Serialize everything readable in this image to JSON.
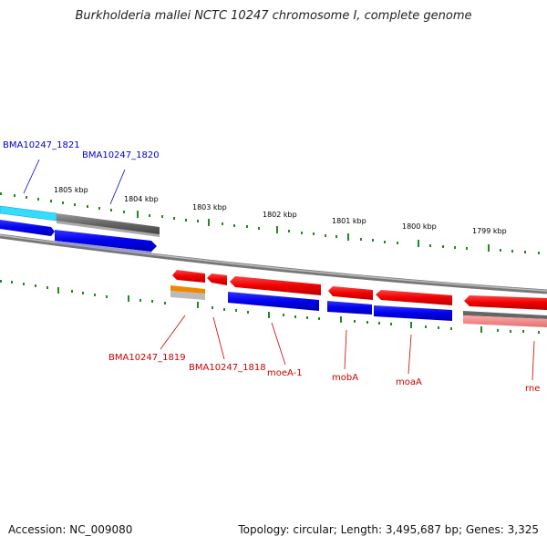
{
  "title": "Burkholderia mallei NCTC 10247 chromosome I, complete genome",
  "footer": {
    "accession": "Accession: NC_009080",
    "summary": "Topology: circular; Length: 3,495,687 bp; Genes: 3,325"
  },
  "scale_labels": [
    "1805 kbp",
    "1804 kbp",
    "1803 kbp",
    "1802 kbp",
    "1801 kbp",
    "1800 kbp",
    "1799 kbp"
  ],
  "gene_labels": [
    {
      "text": "BMA10247_1821",
      "color": "#0000cc"
    },
    {
      "text": "BMA10247_1820",
      "color": "#0000cc"
    },
    {
      "text": "BMA10247_1819",
      "color": "#cc0000"
    },
    {
      "text": "BMA10247_1818",
      "color": "#cc0000"
    },
    {
      "text": "moeA-1",
      "color": "#cc0000"
    },
    {
      "text": "mobA",
      "color": "#cc0000"
    },
    {
      "text": "moaA",
      "color": "#cc0000"
    },
    {
      "text": "rne",
      "color": "#cc0000"
    }
  ],
  "colors": {
    "forward_cds": "#0000ee",
    "reverse_cds": "#ee0000",
    "reverse_light": "#f08080",
    "rna_cyan": "#33ddff",
    "dark_gray": "#666666",
    "orange": "#ee8800",
    "tick_green": "#228822",
    "backbone": "#888888"
  }
}
